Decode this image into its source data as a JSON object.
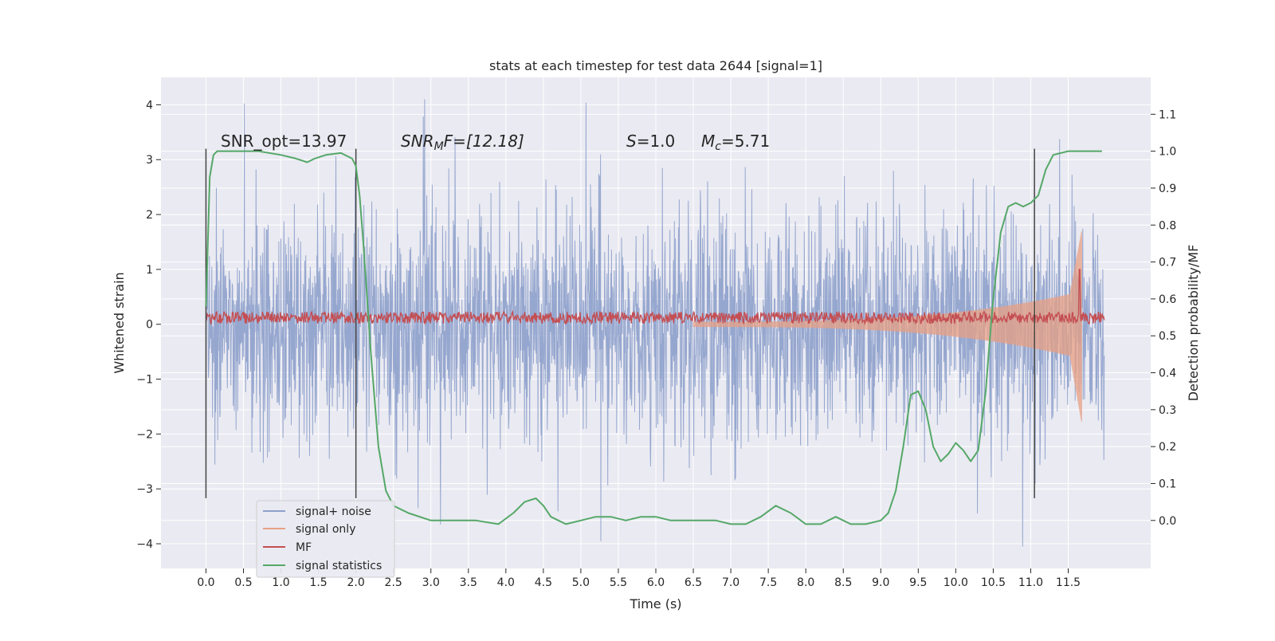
{
  "chart_data": {
    "type": "line",
    "title": "stats at each timestep for test data 2644 [signal=1]",
    "xlabel": "Time (s)",
    "ylabel_left": "Whitened strain",
    "ylabel_right": "Detection probability/MF",
    "xlim": [
      -0.6,
      12.6
    ],
    "ylim_left": [
      -4.45,
      4.5
    ],
    "ylim_right": [
      -0.13,
      1.2
    ],
    "x_ticks": [
      "0.0",
      "0.5",
      "1.0",
      "1.5",
      "2.0",
      "2.5",
      "3.0",
      "3.5",
      "4.0",
      "4.5",
      "5.0",
      "5.5",
      "6.0",
      "6.5",
      "7.0",
      "7.5",
      "8.0",
      "8.5",
      "9.0",
      "9.5",
      "10.0",
      "10.5",
      "11.0",
      "11.5"
    ],
    "y_ticks_left": [
      "−4",
      "−3",
      "−2",
      "−1",
      "0",
      "1",
      "2",
      "3",
      "4"
    ],
    "y_ticks_right": [
      "0.0",
      "0.1",
      "0.2",
      "0.3",
      "0.4",
      "0.5",
      "0.6",
      "0.7",
      "0.8",
      "0.9",
      "1.0",
      "1.1"
    ],
    "grid": true,
    "legend_position": "bottom-left",
    "colors": {
      "signal_noise": "#8da0cb",
      "signal_only": "#e8a084",
      "mf": "#c44e52",
      "statistics": "#55a868",
      "background": "#eaeaf2",
      "vlines": "#444444"
    },
    "annotations": {
      "snr_opt": "SNR_opt=13.97",
      "snr_mf_main": "SNR",
      "snr_mf_sub": "M",
      "snr_mf_rest": "F=[12.18]",
      "s_main": "S",
      "s_rest": "=1.0",
      "mc_main": "M",
      "mc_sub": "c",
      "mc_rest": "=5.71"
    },
    "vertical_lines_x": [
      0.0,
      2.0,
      11.05
    ],
    "series": [
      {
        "name": "signal+ noise",
        "description_envelope": "Gaussian whitened noise, std about 1, spans roughly −4 to 4 over 0 to 12 s"
      },
      {
        "name": "signal only",
        "chirp_start_s": 6.5,
        "chirp_end_s": 11.68,
        "peak_amplitude": 1.7
      },
      {
        "name": "MF",
        "baseline": 0.12,
        "spike_x": 11.65,
        "spike_y": 1.0
      },
      {
        "name": "signal statistics",
        "x": [
          0.0,
          0.05,
          0.1,
          0.15,
          0.25,
          0.4,
          0.7,
          1.0,
          1.2,
          1.35,
          1.45,
          1.6,
          1.8,
          1.95,
          2.0,
          2.05,
          2.1,
          2.2,
          2.3,
          2.4,
          2.5,
          2.7,
          3.0,
          3.3,
          3.6,
          3.9,
          4.1,
          4.25,
          4.4,
          4.5,
          4.6,
          4.8,
          5.0,
          5.2,
          5.4,
          5.6,
          5.8,
          6.0,
          6.2,
          6.5,
          6.8,
          7.0,
          7.2,
          7.4,
          7.6,
          7.8,
          8.0,
          8.2,
          8.4,
          8.6,
          8.8,
          9.0,
          9.1,
          9.2,
          9.3,
          9.4,
          9.5,
          9.6,
          9.7,
          9.8,
          9.9,
          10.0,
          10.1,
          10.2,
          10.3,
          10.4,
          10.45,
          10.5,
          10.6,
          10.7,
          10.8,
          10.9,
          11.0,
          11.1,
          11.2,
          11.3,
          11.5,
          11.7,
          11.95
        ],
        "y": [
          0.58,
          0.93,
          0.99,
          1.0,
          1.0,
          1.0,
          1.0,
          0.99,
          0.98,
          0.97,
          0.98,
          0.99,
          0.995,
          0.98,
          0.96,
          0.88,
          0.75,
          0.45,
          0.2,
          0.08,
          0.04,
          0.02,
          0.0,
          0.0,
          0.0,
          -0.01,
          0.02,
          0.05,
          0.06,
          0.04,
          0.01,
          -0.01,
          0.0,
          0.01,
          0.01,
          0.0,
          0.01,
          0.01,
          0.0,
          0.0,
          0.0,
          -0.01,
          -0.01,
          0.01,
          0.04,
          0.02,
          -0.01,
          -0.01,
          0.01,
          -0.01,
          -0.01,
          0.0,
          0.02,
          0.08,
          0.2,
          0.34,
          0.35,
          0.3,
          0.2,
          0.16,
          0.18,
          0.21,
          0.19,
          0.16,
          0.19,
          0.35,
          0.48,
          0.6,
          0.78,
          0.85,
          0.86,
          0.85,
          0.86,
          0.88,
          0.95,
          0.99,
          1.0,
          1.0,
          1.0
        ]
      }
    ]
  }
}
